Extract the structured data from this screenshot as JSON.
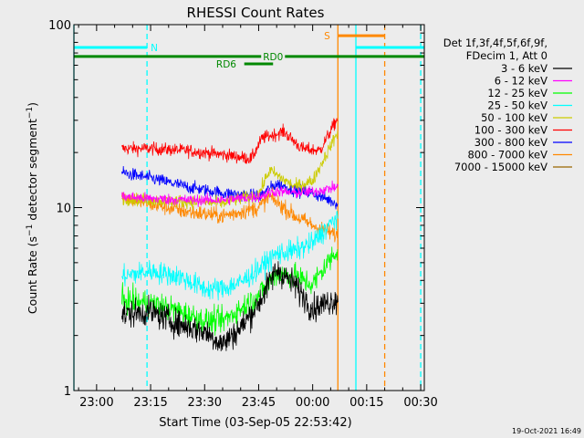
{
  "chart_data": {
    "type": "line",
    "title": "RHESSI Count Rates",
    "xlabel": "Start Time (03-Sep-05 22:53:42)",
    "ylabel": "Count Rate (s⁻¹ detector segment⁻¹)",
    "ylabel_parts": {
      "main": "Count Rate (s",
      "sup1": "−1",
      "mid": " detector segment",
      "sup2": "−1",
      "end": ")"
    },
    "y_scale": "log",
    "xlim": [
      "22:53:42",
      "00:31:00"
    ],
    "ylim": [
      1,
      100
    ],
    "x_ticks": [
      "23:00",
      "23:15",
      "23:30",
      "23:45",
      "00:00",
      "00:15",
      "00:30"
    ],
    "y_ticks": [
      "1",
      "10",
      "100"
    ],
    "grid": false,
    "legend_placement": "right",
    "legend_header": [
      "Det 1f,3f,4f,5f,6f,9f,",
      "FDecim 1, Att 0"
    ],
    "series": [
      {
        "name": "3 - 6 keV",
        "color": "#000000",
        "x": [
          "23:07",
          "23:15",
          "23:23",
          "23:30",
          "23:35",
          "23:40",
          "23:45",
          "23:50",
          "23:55",
          "00:00",
          "00:07"
        ],
        "values": [
          2.6,
          2.7,
          2.3,
          2.1,
          1.8,
          2.2,
          3.0,
          4.6,
          3.8,
          2.8,
          3.2
        ]
      },
      {
        "name": "6 - 12 keV",
        "color": "#ff00ff",
        "x": [
          "23:07",
          "23:15",
          "23:25",
          "23:35",
          "23:45",
          "23:50",
          "23:55",
          "00:00",
          "00:07"
        ],
        "values": [
          11.5,
          11.2,
          11.0,
          11.0,
          11.5,
          12.3,
          12.0,
          12.2,
          13.0
        ]
      },
      {
        "name": "12 - 25 keV",
        "color": "#00ff00",
        "x": [
          "23:07",
          "23:15",
          "23:23",
          "23:30",
          "23:35",
          "23:40",
          "23:45",
          "23:50",
          "23:55",
          "00:00",
          "00:07"
        ],
        "values": [
          3.1,
          3.0,
          2.7,
          2.4,
          2.4,
          2.8,
          3.3,
          4.4,
          4.2,
          3.8,
          6.0
        ]
      },
      {
        "name": "25 - 50 keV",
        "color": "#00ffff",
        "x": [
          "23:07",
          "23:15",
          "23:23",
          "23:30",
          "23:35",
          "23:40",
          "23:45",
          "23:50",
          "23:55",
          "00:00",
          "00:07"
        ],
        "values": [
          4.2,
          4.5,
          4.2,
          3.6,
          3.6,
          3.9,
          4.6,
          5.6,
          5.8,
          6.4,
          9.0
        ]
      },
      {
        "name": "50 - 100 keV",
        "color": "#cccc00",
        "x": [
          "23:07",
          "23:15",
          "23:25",
          "23:35",
          "23:45",
          "23:48",
          "23:55",
          "00:00",
          "00:07"
        ],
        "values": [
          11.2,
          11.0,
          10.8,
          10.6,
          11.8,
          16.0,
          13.0,
          14.0,
          26.0
        ]
      },
      {
        "name": "100 - 300 keV",
        "color": "#ff0000",
        "x": [
          "23:07",
          "23:15",
          "23:25",
          "23:35",
          "23:43",
          "23:46",
          "23:52",
          "23:57",
          "00:02",
          "00:07"
        ],
        "values": [
          21.0,
          21.0,
          20.5,
          19.5,
          18.5,
          24.0,
          26.0,
          21.0,
          20.5,
          31.0
        ]
      },
      {
        "name": "300 - 800 keV",
        "color": "#0000ff",
        "x": [
          "23:07",
          "23:15",
          "23:25",
          "23:35",
          "23:45",
          "23:50",
          "23:55",
          "00:00",
          "00:07"
        ],
        "values": [
          15.5,
          14.5,
          13.0,
          12.0,
          11.5,
          13.5,
          12.5,
          12.0,
          10.5
        ]
      },
      {
        "name": "800 - 7000 keV",
        "color": "#ff8800",
        "x": [
          "23:07",
          "23:15",
          "23:25",
          "23:35",
          "23:45",
          "23:48",
          "23:55",
          "00:00",
          "00:07"
        ],
        "values": [
          11.5,
          10.5,
          9.5,
          9.0,
          10.0,
          11.5,
          9.0,
          8.0,
          7.0
        ]
      },
      {
        "name": "7000 - 15000 keV",
        "color": "#996600",
        "x": [],
        "values": []
      }
    ],
    "annotations": {
      "flag_lines": [
        {
          "label": "N",
          "color": "#00ffff",
          "level": 75,
          "segments": [
            [
              "22:53:42",
              "23:14"
            ],
            [
              "00:12",
              "00:31"
            ]
          ],
          "label_at": "23:16"
        },
        {
          "label": "RD0",
          "color": "#008800",
          "level": 67,
          "segments": [
            [
              "22:53:42",
              "00:31"
            ]
          ],
          "label_at": "23:49"
        },
        {
          "label": "RD6",
          "color": "#008800",
          "level": 61,
          "segments": [
            [
              "23:41",
              "23:49"
            ]
          ],
          "label_at": "23:36"
        },
        {
          "label": "S",
          "color": "#ff8800",
          "level": 87,
          "segments": [
            [
              "00:07",
              "00:20"
            ]
          ],
          "label_at": "00:04"
        }
      ],
      "vlines": [
        {
          "x": "22:53:42",
          "color": "#00ffff",
          "style": "solid"
        },
        {
          "x": "23:14",
          "color": "#00ffff",
          "style": "dashed"
        },
        {
          "x": "00:07",
          "color": "#ff8800",
          "style": "solid"
        },
        {
          "x": "00:12",
          "color": "#00ffff",
          "style": "solid"
        },
        {
          "x": "00:20",
          "color": "#ff8800",
          "style": "dashed"
        },
        {
          "x": "00:30",
          "color": "#00ffff",
          "style": "dashed"
        }
      ]
    }
  },
  "footer": {
    "timestamp": "19-Oct-2021 16:49"
  }
}
